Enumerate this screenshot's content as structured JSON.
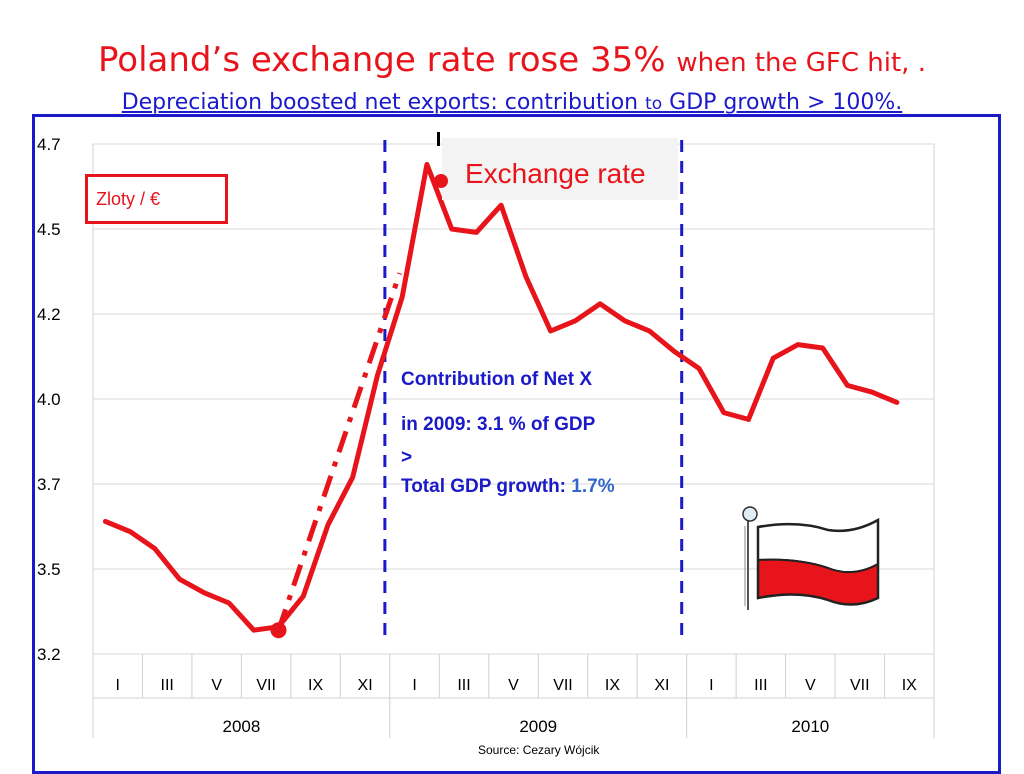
{
  "title": {
    "main": "Poland’s exchange rate rose 35%",
    "tail": "when the GFC hit, .",
    "sub_a": "Depreciation boosted net exports:  contribution",
    "sub_to": "to",
    "sub_b": "GDP growth",
    "sub_gt": ">",
    "sub_c": "100%."
  },
  "unit_label": "Zloty / €",
  "legend_label": "Exchange rate",
  "annotation": {
    "line1": "Contribution of Net  X",
    "line2": "in 2009:   3.1 % of GDP",
    "line3": ">",
    "line4_label": "Total GDP growth:",
    "line4_value": "1.7%"
  },
  "source": "Source: Cezary Wójcik",
  "colors": {
    "line": "#e8141b",
    "title": "#e8141b",
    "subtitle": "#1a1ac8",
    "frame": "#1a1ac8",
    "grid": "#d9d9d9"
  },
  "flag_icon": "poland-flag-icon",
  "chart_data": {
    "type": "line",
    "title": "Poland’s exchange rate rose 35% when the GFC hit, .",
    "ylabel": "Zloty / €",
    "ylim": [
      3.2,
      4.7
    ],
    "y_ticks": [
      "3.2",
      "3.5",
      "3.7",
      "4.0",
      "4.2",
      "4.5",
      "4.7"
    ],
    "y_tick_values": [
      3.2,
      3.45,
      3.7,
      3.95,
      4.2,
      4.45,
      4.7
    ],
    "x_tick_labels": [
      "I",
      "III",
      "V",
      "VII",
      "IX",
      "XI",
      "I",
      "III",
      "V",
      "VII",
      "IX",
      "XI",
      "I",
      "III",
      "V",
      "VII",
      "IX"
    ],
    "years": [
      {
        "label": "2008",
        "months": 12
      },
      {
        "label": "2009",
        "months": 12
      },
      {
        "label": "2010",
        "months": 9
      }
    ],
    "grid": true,
    "legend_position": "top-center",
    "series": [
      {
        "name": "Exchange rate",
        "values": [
          3.59,
          3.56,
          3.51,
          3.42,
          3.38,
          3.35,
          3.27,
          3.28,
          3.37,
          3.58,
          3.72,
          4.02,
          4.25,
          4.64,
          4.45,
          4.44,
          4.52,
          4.31,
          4.15,
          4.18,
          4.23,
          4.18,
          4.15,
          4.09,
          4.04,
          3.91,
          3.89,
          4.07,
          4.11,
          4.1,
          3.99,
          3.97,
          3.94
        ]
      }
    ],
    "trend_line": {
      "from": [
        7,
        3.27
      ],
      "to": [
        11.9,
        4.32
      ],
      "style": "dash-dot"
    },
    "markers": [
      {
        "x": 7,
        "y": 3.27
      }
    ],
    "vlines_at_boundaries": [
      "2009-I",
      "2010-I"
    ]
  }
}
